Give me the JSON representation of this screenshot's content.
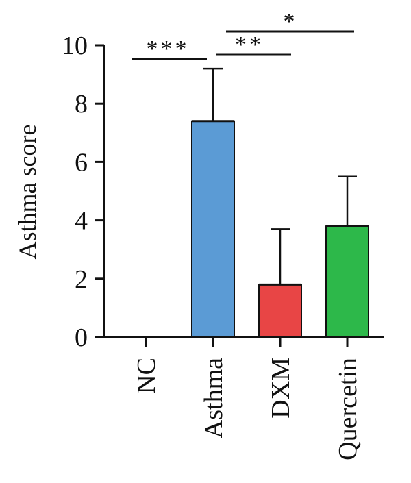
{
  "chart_data": {
    "type": "bar",
    "ylabel": "Asthma score",
    "xlabel": "",
    "ylim": [
      0,
      10
    ],
    "yticks": [
      "0",
      "2",
      "4",
      "6",
      "8",
      "10"
    ],
    "categories": [
      "NC",
      "Asthma",
      "DXM",
      "Quercetin"
    ],
    "values": [
      0,
      7.4,
      1.8,
      3.8
    ],
    "errors": [
      0,
      1.8,
      1.9,
      1.7
    ],
    "colors": [
      "#ffffff",
      "#5b9bd5",
      "#e84545",
      "#2db84a"
    ],
    "significance": [
      {
        "from": "NC",
        "to": "Asthma",
        "label": "***"
      },
      {
        "from": "Asthma",
        "to": "DXM",
        "label": "**"
      },
      {
        "from": "Asthma",
        "to": "Quercetin",
        "label": "*"
      }
    ]
  }
}
